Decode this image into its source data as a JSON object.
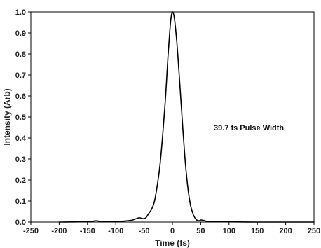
{
  "chart_data": {
    "type": "line",
    "title": "",
    "xlabel": "Time (fs)",
    "ylabel": "Intensity (Arb)",
    "xlim": [
      -250,
      250
    ],
    "ylim": [
      0,
      1
    ],
    "x_ticks": [
      -250,
      -200,
      -150,
      -100,
      -50,
      0,
      50,
      100,
      150,
      200,
      250
    ],
    "x_tick_labels": [
      "-250",
      "-200",
      "-150",
      "-100",
      "-50",
      "0",
      "50",
      "100",
      "150",
      "200",
      "250"
    ],
    "y_ticks": [
      0,
      0.1,
      0.2,
      0.3,
      0.4,
      0.5,
      0.6,
      0.7,
      0.8,
      0.9,
      1.0
    ],
    "y_tick_labels": [
      "0.0",
      "0.1",
      "0.2",
      "0.3",
      "0.4",
      "0.5",
      "0.6",
      "0.7",
      "0.8",
      "0.9",
      "1.0"
    ],
    "grid": false,
    "legend": "none",
    "annotation": "39.7 fs Pulse Width",
    "line_color": "#000000",
    "series": [
      {
        "x": [
          -200,
          -150,
          -135,
          -125,
          -100,
          -80,
          -70,
          -62,
          -57,
          -52,
          -47,
          -42,
          -37,
          -32,
          -27,
          -22,
          -17,
          -12,
          -8,
          -4,
          -2,
          0,
          2,
          4,
          8,
          12,
          17,
          22,
          27,
          32,
          37,
          42,
          47,
          50,
          55,
          60,
          70,
          100,
          150,
          200,
          250
        ],
        "y": [
          0.0,
          0.002,
          0.006,
          0.003,
          0.002,
          0.006,
          0.01,
          0.018,
          0.02,
          0.016,
          0.02,
          0.04,
          0.06,
          0.095,
          0.17,
          0.27,
          0.42,
          0.6,
          0.78,
          0.93,
          0.98,
          1.0,
          0.99,
          0.96,
          0.85,
          0.7,
          0.5,
          0.31,
          0.17,
          0.08,
          0.035,
          0.012,
          0.006,
          0.01,
          0.008,
          0.004,
          0.002,
          0.001,
          0.0,
          0.0,
          0.0
        ]
      }
    ]
  }
}
